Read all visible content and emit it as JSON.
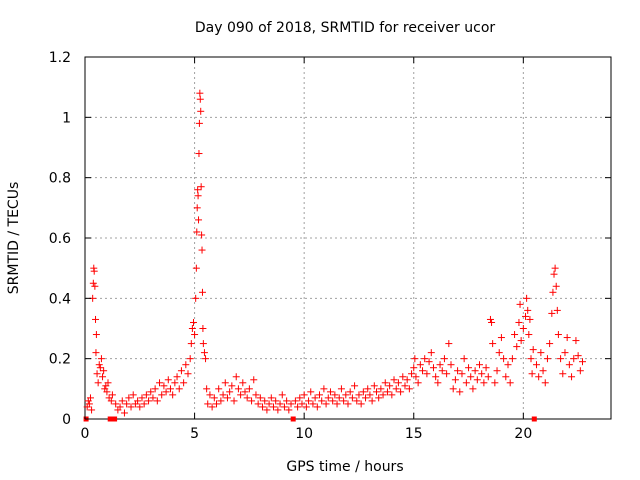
{
  "chart_data": {
    "type": "scatter",
    "title": "Day 090 of 2018, SRMTID for receiver ucor",
    "xlabel": "GPS time / hours",
    "ylabel": "SRMTID / TECUs",
    "xlim": [
      0,
      24
    ],
    "ylim": [
      0,
      1.2
    ],
    "xticks": [
      0,
      5,
      10,
      15,
      20
    ],
    "xtick_labels": [
      "0",
      "5",
      "10",
      "15",
      "20"
    ],
    "yticks": [
      0,
      0.2,
      0.4,
      0.6,
      0.8,
      1.0,
      1.2
    ],
    "ytick_labels": [
      "0",
      "0.2",
      "0.4",
      "0.6",
      "0.8",
      "1",
      "1.2"
    ],
    "grid": true,
    "marker": "plus",
    "color": "#ff0000",
    "series": [
      {
        "name": "SRMTID",
        "points": [
          [
            0.05,
            0.0
          ],
          [
            0.1,
            0.04
          ],
          [
            0.15,
            0.06
          ],
          [
            0.2,
            0.05
          ],
          [
            0.25,
            0.07
          ],
          [
            0.3,
            0.03
          ],
          [
            0.35,
            0.4
          ],
          [
            0.38,
            0.45
          ],
          [
            0.4,
            0.5
          ],
          [
            0.42,
            0.49
          ],
          [
            0.45,
            0.44
          ],
          [
            0.48,
            0.33
          ],
          [
            0.5,
            0.22
          ],
          [
            0.52,
            0.28
          ],
          [
            0.55,
            0.15
          ],
          [
            0.6,
            0.12
          ],
          [
            0.65,
            0.18
          ],
          [
            0.7,
            0.17
          ],
          [
            0.75,
            0.2
          ],
          [
            0.8,
            0.14
          ],
          [
            0.85,
            0.16
          ],
          [
            0.9,
            0.1
          ],
          [
            0.95,
            0.11
          ],
          [
            1.0,
            0.09
          ],
          [
            1.05,
            0.12
          ],
          [
            1.1,
            0.07
          ],
          [
            1.15,
            0.0
          ],
          [
            1.2,
            0.06
          ],
          [
            1.25,
            0.08
          ],
          [
            1.35,
            0.0
          ],
          [
            1.4,
            0.05
          ],
          [
            1.5,
            0.03
          ],
          [
            1.6,
            0.04
          ],
          [
            1.7,
            0.06
          ],
          [
            1.8,
            0.02
          ],
          [
            1.9,
            0.05
          ],
          [
            2.0,
            0.07
          ],
          [
            2.1,
            0.04
          ],
          [
            2.2,
            0.08
          ],
          [
            2.3,
            0.05
          ],
          [
            2.4,
            0.06
          ],
          [
            2.5,
            0.04
          ],
          [
            2.6,
            0.07
          ],
          [
            2.7,
            0.05
          ],
          [
            2.8,
            0.08
          ],
          [
            2.9,
            0.06
          ],
          [
            3.0,
            0.09
          ],
          [
            3.1,
            0.07
          ],
          [
            3.2,
            0.1
          ],
          [
            3.3,
            0.06
          ],
          [
            3.4,
            0.12
          ],
          [
            3.5,
            0.08
          ],
          [
            3.6,
            0.11
          ],
          [
            3.7,
            0.09
          ],
          [
            3.8,
            0.13
          ],
          [
            3.9,
            0.1
          ],
          [
            4.0,
            0.08
          ],
          [
            4.1,
            0.12
          ],
          [
            4.2,
            0.14
          ],
          [
            4.3,
            0.1
          ],
          [
            4.4,
            0.16
          ],
          [
            4.5,
            0.12
          ],
          [
            4.6,
            0.18
          ],
          [
            4.7,
            0.15
          ],
          [
            4.8,
            0.2
          ],
          [
            4.85,
            0.25
          ],
          [
            4.9,
            0.3
          ],
          [
            4.95,
            0.32
          ],
          [
            5.0,
            0.28
          ],
          [
            5.05,
            0.4
          ],
          [
            5.08,
            0.5
          ],
          [
            5.1,
            0.62
          ],
          [
            5.12,
            0.7
          ],
          [
            5.14,
            0.76
          ],
          [
            5.16,
            0.74
          ],
          [
            5.18,
            0.66
          ],
          [
            5.2,
            0.88
          ],
          [
            5.22,
            0.98
          ],
          [
            5.24,
            1.08
          ],
          [
            5.26,
            1.06
          ],
          [
            5.28,
            1.02
          ],
          [
            5.3,
            0.77
          ],
          [
            5.32,
            0.61
          ],
          [
            5.34,
            0.56
          ],
          [
            5.36,
            0.42
          ],
          [
            5.38,
            0.3
          ],
          [
            5.4,
            0.25
          ],
          [
            5.45,
            0.22
          ],
          [
            5.5,
            0.2
          ],
          [
            5.55,
            0.1
          ],
          [
            5.6,
            0.05
          ],
          [
            5.7,
            0.08
          ],
          [
            5.8,
            0.04
          ],
          [
            5.9,
            0.07
          ],
          [
            6.0,
            0.05
          ],
          [
            6.1,
            0.1
          ],
          [
            6.2,
            0.06
          ],
          [
            6.3,
            0.08
          ],
          [
            6.4,
            0.12
          ],
          [
            6.5,
            0.07
          ],
          [
            6.6,
            0.09
          ],
          [
            6.7,
            0.11
          ],
          [
            6.8,
            0.06
          ],
          [
            6.9,
            0.14
          ],
          [
            7.0,
            0.1
          ],
          [
            7.1,
            0.08
          ],
          [
            7.2,
            0.12
          ],
          [
            7.3,
            0.09
          ],
          [
            7.4,
            0.07
          ],
          [
            7.5,
            0.1
          ],
          [
            7.6,
            0.06
          ],
          [
            7.7,
            0.13
          ],
          [
            7.8,
            0.08
          ],
          [
            7.9,
            0.05
          ],
          [
            8.0,
            0.07
          ],
          [
            8.1,
            0.04
          ],
          [
            8.2,
            0.06
          ],
          [
            8.3,
            0.03
          ],
          [
            8.4,
            0.05
          ],
          [
            8.5,
            0.07
          ],
          [
            8.6,
            0.04
          ],
          [
            8.7,
            0.06
          ],
          [
            8.8,
            0.03
          ],
          [
            8.9,
            0.05
          ],
          [
            9.0,
            0.08
          ],
          [
            9.1,
            0.04
          ],
          [
            9.2,
            0.06
          ],
          [
            9.3,
            0.03
          ],
          [
            9.4,
            0.05
          ],
          [
            9.5,
            0.0
          ],
          [
            9.6,
            0.06
          ],
          [
            9.7,
            0.04
          ],
          [
            9.8,
            0.07
          ],
          [
            9.9,
            0.05
          ],
          [
            10.0,
            0.08
          ],
          [
            10.1,
            0.04
          ],
          [
            10.2,
            0.06
          ],
          [
            10.3,
            0.09
          ],
          [
            10.4,
            0.05
          ],
          [
            10.5,
            0.07
          ],
          [
            10.6,
            0.04
          ],
          [
            10.7,
            0.08
          ],
          [
            10.8,
            0.06
          ],
          [
            10.9,
            0.1
          ],
          [
            11.0,
            0.05
          ],
          [
            11.1,
            0.07
          ],
          [
            11.2,
            0.09
          ],
          [
            11.3,
            0.06
          ],
          [
            11.4,
            0.08
          ],
          [
            11.5,
            0.05
          ],
          [
            11.6,
            0.07
          ],
          [
            11.7,
            0.1
          ],
          [
            11.8,
            0.06
          ],
          [
            11.9,
            0.08
          ],
          [
            12.0,
            0.05
          ],
          [
            12.1,
            0.09
          ],
          [
            12.2,
            0.07
          ],
          [
            12.3,
            0.11
          ],
          [
            12.4,
            0.06
          ],
          [
            12.5,
            0.08
          ],
          [
            12.6,
            0.05
          ],
          [
            12.7,
            0.09
          ],
          [
            12.8,
            0.07
          ],
          [
            12.9,
            0.1
          ],
          [
            13.0,
            0.08
          ],
          [
            13.1,
            0.06
          ],
          [
            13.2,
            0.11
          ],
          [
            13.3,
            0.09
          ],
          [
            13.4,
            0.07
          ],
          [
            13.5,
            0.1
          ],
          [
            13.6,
            0.08
          ],
          [
            13.7,
            0.12
          ],
          [
            13.8,
            0.09
          ],
          [
            13.9,
            0.11
          ],
          [
            14.0,
            0.08
          ],
          [
            14.1,
            0.13
          ],
          [
            14.2,
            0.1
          ],
          [
            14.3,
            0.12
          ],
          [
            14.4,
            0.09
          ],
          [
            14.5,
            0.14
          ],
          [
            14.6,
            0.11
          ],
          [
            14.7,
            0.13
          ],
          [
            14.8,
            0.1
          ],
          [
            14.9,
            0.15
          ],
          [
            15.0,
            0.17
          ],
          [
            15.05,
            0.2
          ],
          [
            15.1,
            0.14
          ],
          [
            15.2,
            0.12
          ],
          [
            15.3,
            0.18
          ],
          [
            15.4,
            0.16
          ],
          [
            15.5,
            0.2
          ],
          [
            15.6,
            0.15
          ],
          [
            15.7,
            0.19
          ],
          [
            15.8,
            0.22
          ],
          [
            15.9,
            0.17
          ],
          [
            16.0,
            0.14
          ],
          [
            16.1,
            0.12
          ],
          [
            16.2,
            0.18
          ],
          [
            16.3,
            0.16
          ],
          [
            16.4,
            0.2
          ],
          [
            16.5,
            0.15
          ],
          [
            16.6,
            0.25
          ],
          [
            16.7,
            0.18
          ],
          [
            16.8,
            0.1
          ],
          [
            16.9,
            0.13
          ],
          [
            17.0,
            0.16
          ],
          [
            17.1,
            0.09
          ],
          [
            17.2,
            0.15
          ],
          [
            17.3,
            0.2
          ],
          [
            17.4,
            0.12
          ],
          [
            17.5,
            0.17
          ],
          [
            17.6,
            0.14
          ],
          [
            17.7,
            0.1
          ],
          [
            17.8,
            0.16
          ],
          [
            17.9,
            0.13
          ],
          [
            18.0,
            0.18
          ],
          [
            18.1,
            0.15
          ],
          [
            18.2,
            0.12
          ],
          [
            18.3,
            0.17
          ],
          [
            18.4,
            0.14
          ],
          [
            18.5,
            0.33
          ],
          [
            18.55,
            0.32
          ],
          [
            18.6,
            0.25
          ],
          [
            18.7,
            0.12
          ],
          [
            18.8,
            0.16
          ],
          [
            18.9,
            0.22
          ],
          [
            19.0,
            0.27
          ],
          [
            19.1,
            0.2
          ],
          [
            19.2,
            0.14
          ],
          [
            19.3,
            0.18
          ],
          [
            19.4,
            0.12
          ],
          [
            19.5,
            0.2
          ],
          [
            19.6,
            0.28
          ],
          [
            19.7,
            0.24
          ],
          [
            19.8,
            0.32
          ],
          [
            19.85,
            0.38
          ],
          [
            19.9,
            0.26
          ],
          [
            20.0,
            0.3
          ],
          [
            20.1,
            0.34
          ],
          [
            20.15,
            0.4
          ],
          [
            20.2,
            0.36
          ],
          [
            20.25,
            0.28
          ],
          [
            20.3,
            0.33
          ],
          [
            20.35,
            0.2
          ],
          [
            20.4,
            0.15
          ],
          [
            20.45,
            0.23
          ],
          [
            20.5,
            0.0
          ],
          [
            20.6,
            0.18
          ],
          [
            20.7,
            0.14
          ],
          [
            20.8,
            0.22
          ],
          [
            20.9,
            0.16
          ],
          [
            21.0,
            0.12
          ],
          [
            21.1,
            0.2
          ],
          [
            21.2,
            0.25
          ],
          [
            21.3,
            0.35
          ],
          [
            21.35,
            0.42
          ],
          [
            21.4,
            0.48
          ],
          [
            21.45,
            0.5
          ],
          [
            21.5,
            0.44
          ],
          [
            21.55,
            0.36
          ],
          [
            21.6,
            0.28
          ],
          [
            21.7,
            0.2
          ],
          [
            21.8,
            0.15
          ],
          [
            21.9,
            0.22
          ],
          [
            22.0,
            0.27
          ],
          [
            22.1,
            0.18
          ],
          [
            22.2,
            0.14
          ],
          [
            22.3,
            0.2
          ],
          [
            22.4,
            0.26
          ],
          [
            22.5,
            0.21
          ],
          [
            22.6,
            0.16
          ],
          [
            22.7,
            0.19
          ]
        ]
      }
    ]
  }
}
